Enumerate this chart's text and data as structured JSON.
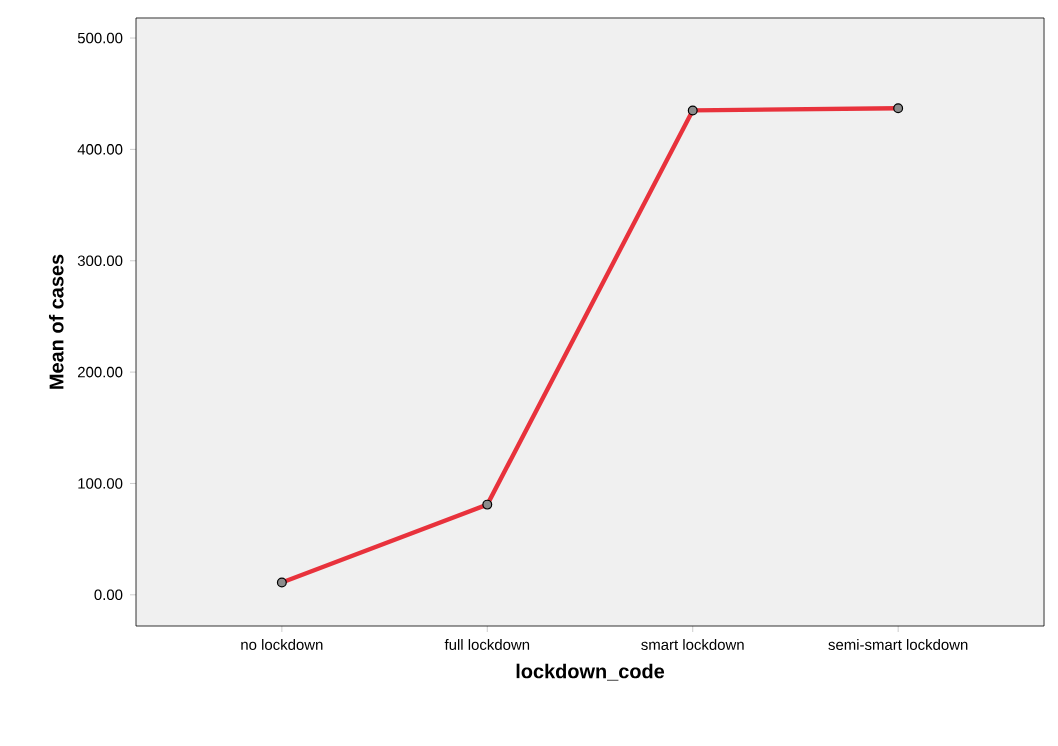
{
  "chart_data": {
    "type": "line",
    "xlabel": "lockdown_code",
    "ylabel": "Mean of cases",
    "categories": [
      "no lockdown",
      "full lockdown",
      "smart lockdown",
      "semi-smart lockdown"
    ],
    "series": [
      {
        "color": "#e8323c",
        "values": [
          11,
          81,
          435,
          437
        ]
      }
    ],
    "ylim": [
      -28,
      518
    ],
    "yticks": [
      {
        "value": 0,
        "label": "0.00"
      },
      {
        "value": 100,
        "label": "100.00"
      },
      {
        "value": 200,
        "label": "200.00"
      },
      {
        "value": 300,
        "label": "300.00"
      },
      {
        "value": 400,
        "label": "400.00"
      },
      {
        "value": 500,
        "label": "500.00"
      }
    ],
    "grid": false,
    "marker": "circle",
    "line_style": "solid"
  }
}
